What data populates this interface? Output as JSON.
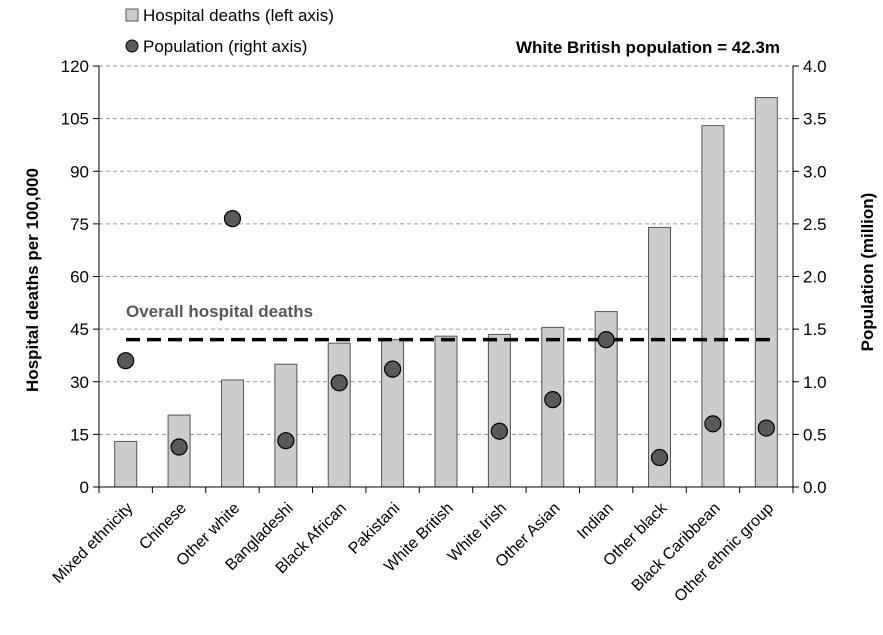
{
  "chart_data": {
    "type": "bar",
    "categories": [
      "Mixed ethnicity",
      "Chinese",
      "Other white",
      "Bangladeshi",
      "Black African",
      "Pakistani",
      "White British",
      "White Irish",
      "Other Asian",
      "Indian",
      "Other black",
      "Black Caribbean",
      "Other ethnic group"
    ],
    "series": [
      {
        "name": "Hospital deaths (left axis)",
        "type": "bar",
        "axis": "left",
        "values": [
          13,
          20.5,
          30.5,
          35,
          41,
          42,
          43,
          43.5,
          45.5,
          50,
          74,
          103,
          111
        ]
      },
      {
        "name": "Population (right axis)",
        "type": "scatter",
        "axis": "right",
        "values": [
          1.2,
          0.38,
          2.55,
          0.44,
          0.99,
          1.12,
          null,
          0.53,
          0.83,
          1.4,
          0.28,
          0.6,
          0.56
        ]
      }
    ],
    "ylabel": "Hospital deaths per 100,000",
    "y2label": "Population (million)",
    "ylim": [
      0,
      120
    ],
    "y2lim": [
      0,
      4.0
    ],
    "yticks": [
      "0",
      "15",
      "30",
      "45",
      "60",
      "75",
      "90",
      "105",
      "120"
    ],
    "y2ticks": [
      "0.0",
      "0.5",
      "1.0",
      "1.5",
      "2.0",
      "2.5",
      "3.0",
      "3.5",
      "4.0"
    ],
    "reference_line": {
      "label": "Overall hospital deaths",
      "value": 42
    },
    "annotation": "White British population = 42.3m",
    "legend_position": "top-left",
    "grid": true,
    "colors": {
      "bar_fill": "#cccccc",
      "bar_stroke": "#555555",
      "dot_fill": "#595959",
      "dot_stroke": "#000000",
      "ref_line": "#000000"
    }
  }
}
